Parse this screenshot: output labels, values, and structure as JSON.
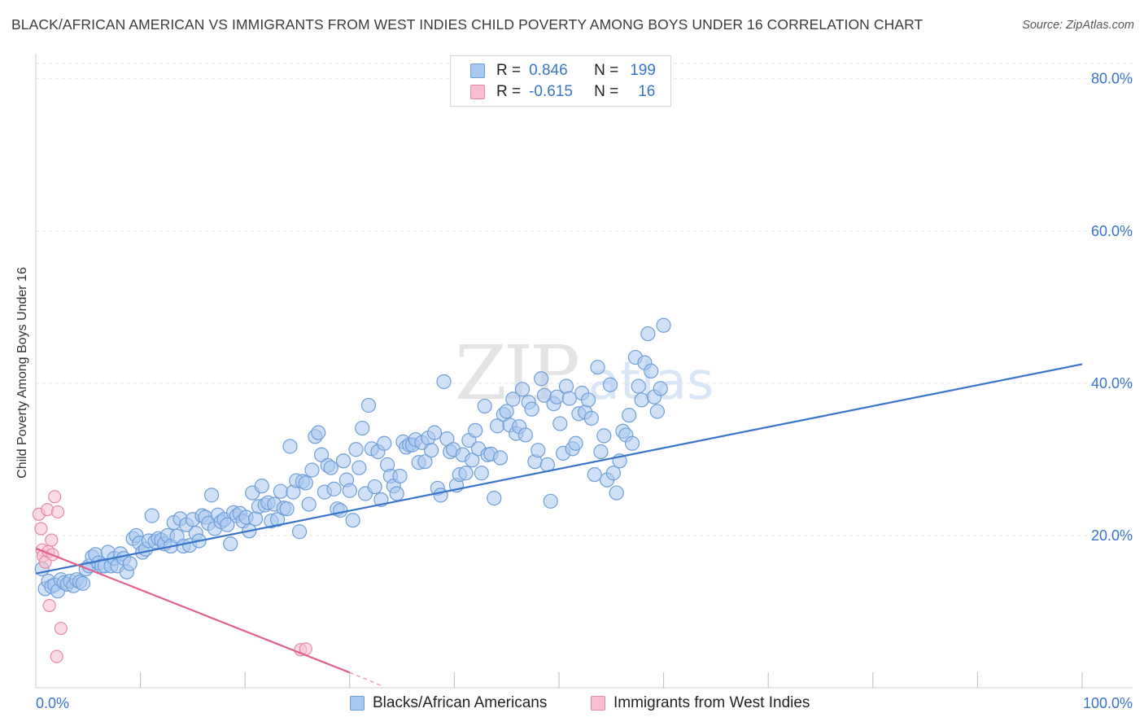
{
  "title": "BLACK/AFRICAN AMERICAN VS IMMIGRANTS FROM WEST INDIES CHILD POVERTY AMONG BOYS UNDER 16 CORRELATION CHART",
  "source": "Source: ZipAtlas.com",
  "watermark": {
    "zip": "ZIP",
    "atlas": "atlas"
  },
  "legend": {
    "rows": [
      {
        "r_label": "R =",
        "r_value": "0.846",
        "n_label": "N =",
        "n_value": "199",
        "color": "#a9c8f0",
        "border": "#6f9fd8"
      },
      {
        "r_label": "R =",
        "r_value": "-0.615",
        "n_label": "N =",
        "n_value": "16",
        "color": "#f8bfd0",
        "border": "#e48aa6"
      }
    ]
  },
  "bottom_legend": [
    {
      "label": "Blacks/African Americans",
      "color": "#a9c8f0",
      "border": "#6f9fd8"
    },
    {
      "label": "Immigrants from West Indies",
      "color": "#f8bfd0",
      "border": "#e48aa6"
    }
  ],
  "chart_data": {
    "type": "scatter",
    "title": "BLACK/AFRICAN AMERICAN VS IMMIGRANTS FROM WEST INDIES CHILD POVERTY AMONG BOYS UNDER 16 CORRELATION CHART",
    "xlabel": "",
    "ylabel": "Child Poverty Among Boys Under 16",
    "xlim": [
      0,
      100
    ],
    "ylim": [
      0,
      82
    ],
    "x_tick_labels": [
      "0.0%",
      "100.0%"
    ],
    "y_ticks": [
      20,
      40,
      60,
      80
    ],
    "y_tick_labels": [
      "20.0%",
      "40.0%",
      "60.0%",
      "80.0%"
    ],
    "grid": true,
    "legend_position": "top-center",
    "series": [
      {
        "name": "Blacks/African Americans",
        "color": "#6f9fd8",
        "fill": "#a9c8f0",
        "trend": {
          "x": [
            0,
            100
          ],
          "y": [
            15.0,
            42.5
          ],
          "color": "#3a74c9"
        },
        "points": [
          [
            0.6,
            15.6
          ],
          [
            0.9,
            13.0
          ],
          [
            1.2,
            14.0
          ],
          [
            1.5,
            13.3
          ],
          [
            1.8,
            13.5
          ],
          [
            2.1,
            12.7
          ],
          [
            2.4,
            14.2
          ],
          [
            2.7,
            13.8
          ],
          [
            3.0,
            13.6
          ],
          [
            3.3,
            14.0
          ],
          [
            3.6,
            13.4
          ],
          [
            3.9,
            14.2
          ],
          [
            4.2,
            13.9
          ],
          [
            4.5,
            13.7
          ],
          [
            4.8,
            15.6
          ],
          [
            5.1,
            16.0
          ],
          [
            5.4,
            17.2
          ],
          [
            5.7,
            17.5
          ],
          [
            6.0,
            16.4
          ],
          [
            6.3,
            16.0
          ],
          [
            6.6,
            16.0
          ],
          [
            6.9,
            17.8
          ],
          [
            7.2,
            16.0
          ],
          [
            7.5,
            17.0
          ],
          [
            7.8,
            16.0
          ],
          [
            8.1,
            17.6
          ],
          [
            8.4,
            17.0
          ],
          [
            8.7,
            15.2
          ],
          [
            9.0,
            16.3
          ],
          [
            9.3,
            19.6
          ],
          [
            9.6,
            20.0
          ],
          [
            9.9,
            19.0
          ],
          [
            10.2,
            17.8
          ],
          [
            10.5,
            18.2
          ],
          [
            10.8,
            19.3
          ],
          [
            11.1,
            22.6
          ],
          [
            11.4,
            19.2
          ],
          [
            11.7,
            19.6
          ],
          [
            12.0,
            19.4
          ],
          [
            12.3,
            18.9
          ],
          [
            12.6,
            20.0
          ],
          [
            12.9,
            18.6
          ],
          [
            13.2,
            21.7
          ],
          [
            13.5,
            19.9
          ],
          [
            13.8,
            22.2
          ],
          [
            14.1,
            18.6
          ],
          [
            14.4,
            21.4
          ],
          [
            14.7,
            18.7
          ],
          [
            15.0,
            22.1
          ],
          [
            15.3,
            20.3
          ],
          [
            15.6,
            19.3
          ],
          [
            15.9,
            22.6
          ],
          [
            16.2,
            22.4
          ],
          [
            16.5,
            21.6
          ],
          [
            16.8,
            25.3
          ],
          [
            17.1,
            20.9
          ],
          [
            17.4,
            22.7
          ],
          [
            17.7,
            21.8
          ],
          [
            18.0,
            22.1
          ],
          [
            18.3,
            21.4
          ],
          [
            18.6,
            18.9
          ],
          [
            18.9,
            23.0
          ],
          [
            19.2,
            22.6
          ],
          [
            19.5,
            22.9
          ],
          [
            19.8,
            21.9
          ],
          [
            20.1,
            22.4
          ],
          [
            20.4,
            20.6
          ],
          [
            20.7,
            25.6
          ],
          [
            21.0,
            22.2
          ],
          [
            21.3,
            23.8
          ],
          [
            21.6,
            26.5
          ],
          [
            21.9,
            24.0
          ],
          [
            22.2,
            24.3
          ],
          [
            22.5,
            21.9
          ],
          [
            22.8,
            24.1
          ],
          [
            23.1,
            22.1
          ],
          [
            23.4,
            25.8
          ],
          [
            23.7,
            23.6
          ],
          [
            24.0,
            23.5
          ],
          [
            24.3,
            31.7
          ],
          [
            24.6,
            25.7
          ],
          [
            24.9,
            27.2
          ],
          [
            25.2,
            20.5
          ],
          [
            25.5,
            27.1
          ],
          [
            25.8,
            26.9
          ],
          [
            26.1,
            24.1
          ],
          [
            26.4,
            28.6
          ],
          [
            26.7,
            33.0
          ],
          [
            27.0,
            33.5
          ],
          [
            27.3,
            30.6
          ],
          [
            27.6,
            25.7
          ],
          [
            27.9,
            29.2
          ],
          [
            28.2,
            28.9
          ],
          [
            28.5,
            26.1
          ],
          [
            28.8,
            23.5
          ],
          [
            29.1,
            23.3
          ],
          [
            29.4,
            29.8
          ],
          [
            29.7,
            27.3
          ],
          [
            30.0,
            25.9
          ],
          [
            30.3,
            22.0
          ],
          [
            30.6,
            31.3
          ],
          [
            30.9,
            28.9
          ],
          [
            31.2,
            34.1
          ],
          [
            31.5,
            25.5
          ],
          [
            31.8,
            37.1
          ],
          [
            32.1,
            31.4
          ],
          [
            32.4,
            26.4
          ],
          [
            32.7,
            31.0
          ],
          [
            33.0,
            24.7
          ],
          [
            33.3,
            32.1
          ],
          [
            33.6,
            29.3
          ],
          [
            33.9,
            27.8
          ],
          [
            34.2,
            26.5
          ],
          [
            34.5,
            25.5
          ],
          [
            34.8,
            27.8
          ],
          [
            35.1,
            32.3
          ],
          [
            35.4,
            31.6
          ],
          [
            35.7,
            31.9
          ],
          [
            36.0,
            31.9
          ],
          [
            36.3,
            32.6
          ],
          [
            36.6,
            29.6
          ],
          [
            36.9,
            32.2
          ],
          [
            37.2,
            29.7
          ],
          [
            37.5,
            32.8
          ],
          [
            37.8,
            31.2
          ],
          [
            38.1,
            33.5
          ],
          [
            38.4,
            26.2
          ],
          [
            38.7,
            25.3
          ],
          [
            39.0,
            40.2
          ],
          [
            39.3,
            32.7
          ],
          [
            39.6,
            31.0
          ],
          [
            39.9,
            31.3
          ],
          [
            40.2,
            26.6
          ],
          [
            40.5,
            28.0
          ],
          [
            40.8,
            30.6
          ],
          [
            41.1,
            28.2
          ],
          [
            41.4,
            32.5
          ],
          [
            41.7,
            29.9
          ],
          [
            42.0,
            33.8
          ],
          [
            42.3,
            31.4
          ],
          [
            42.6,
            28.2
          ],
          [
            42.9,
            37.0
          ],
          [
            43.2,
            30.6
          ],
          [
            43.5,
            30.7
          ],
          [
            43.8,
            24.9
          ],
          [
            44.1,
            34.4
          ],
          [
            44.4,
            30.2
          ],
          [
            44.7,
            35.9
          ],
          [
            45.0,
            36.3
          ],
          [
            45.3,
            34.5
          ],
          [
            45.6,
            37.9
          ],
          [
            45.9,
            33.4
          ],
          [
            46.2,
            34.3
          ],
          [
            46.5,
            39.2
          ],
          [
            46.8,
            33.2
          ],
          [
            47.1,
            37.5
          ],
          [
            47.4,
            36.6
          ],
          [
            47.7,
            29.7
          ],
          [
            48.0,
            31.2
          ],
          [
            48.3,
            40.6
          ],
          [
            48.6,
            38.4
          ],
          [
            48.9,
            29.3
          ],
          [
            49.2,
            24.5
          ],
          [
            49.5,
            37.3
          ],
          [
            49.8,
            38.2
          ],
          [
            50.1,
            34.7
          ],
          [
            50.4,
            30.8
          ],
          [
            50.7,
            39.6
          ],
          [
            51.0,
            38.0
          ],
          [
            51.3,
            31.4
          ],
          [
            51.6,
            32.1
          ],
          [
            51.9,
            36.0
          ],
          [
            52.2,
            38.7
          ],
          [
            52.5,
            36.2
          ],
          [
            52.8,
            37.8
          ],
          [
            53.1,
            35.4
          ],
          [
            53.4,
            28.0
          ],
          [
            53.7,
            42.1
          ],
          [
            54.0,
            31.0
          ],
          [
            54.3,
            33.1
          ],
          [
            54.6,
            27.3
          ],
          [
            54.9,
            39.8
          ],
          [
            55.2,
            28.2
          ],
          [
            55.5,
            25.6
          ],
          [
            55.8,
            29.8
          ],
          [
            56.1,
            33.7
          ],
          [
            56.4,
            33.2
          ],
          [
            56.7,
            35.8
          ],
          [
            57.0,
            32.1
          ],
          [
            57.3,
            43.4
          ],
          [
            57.6,
            39.6
          ],
          [
            57.9,
            37.8
          ],
          [
            58.2,
            42.7
          ],
          [
            58.5,
            46.5
          ],
          [
            58.8,
            41.6
          ],
          [
            59.1,
            38.2
          ],
          [
            59.4,
            36.3
          ],
          [
            59.7,
            39.3
          ],
          [
            60.0,
            47.6
          ]
        ]
      },
      {
        "name": "Immigrants from West Indies",
        "color": "#e48aa6",
        "fill": "#f8bfd0",
        "trend": {
          "x": [
            0,
            30
          ],
          "y": [
            18.3,
            2.0
          ],
          "color": "#e0608c",
          "dash_extension_to": [
            33,
            0.3
          ]
        },
        "points": [
          [
            0.3,
            22.8
          ],
          [
            0.5,
            20.9
          ],
          [
            0.6,
            18.1
          ],
          [
            0.7,
            17.3
          ],
          [
            0.9,
            16.5
          ],
          [
            1.1,
            23.4
          ],
          [
            1.2,
            17.9
          ],
          [
            1.3,
            10.8
          ],
          [
            1.5,
            19.4
          ],
          [
            1.6,
            17.5
          ],
          [
            1.8,
            25.1
          ],
          [
            2.0,
            4.1
          ],
          [
            2.1,
            23.1
          ],
          [
            2.4,
            7.8
          ],
          [
            25.3,
            5.0
          ],
          [
            25.8,
            5.1
          ]
        ]
      }
    ]
  }
}
